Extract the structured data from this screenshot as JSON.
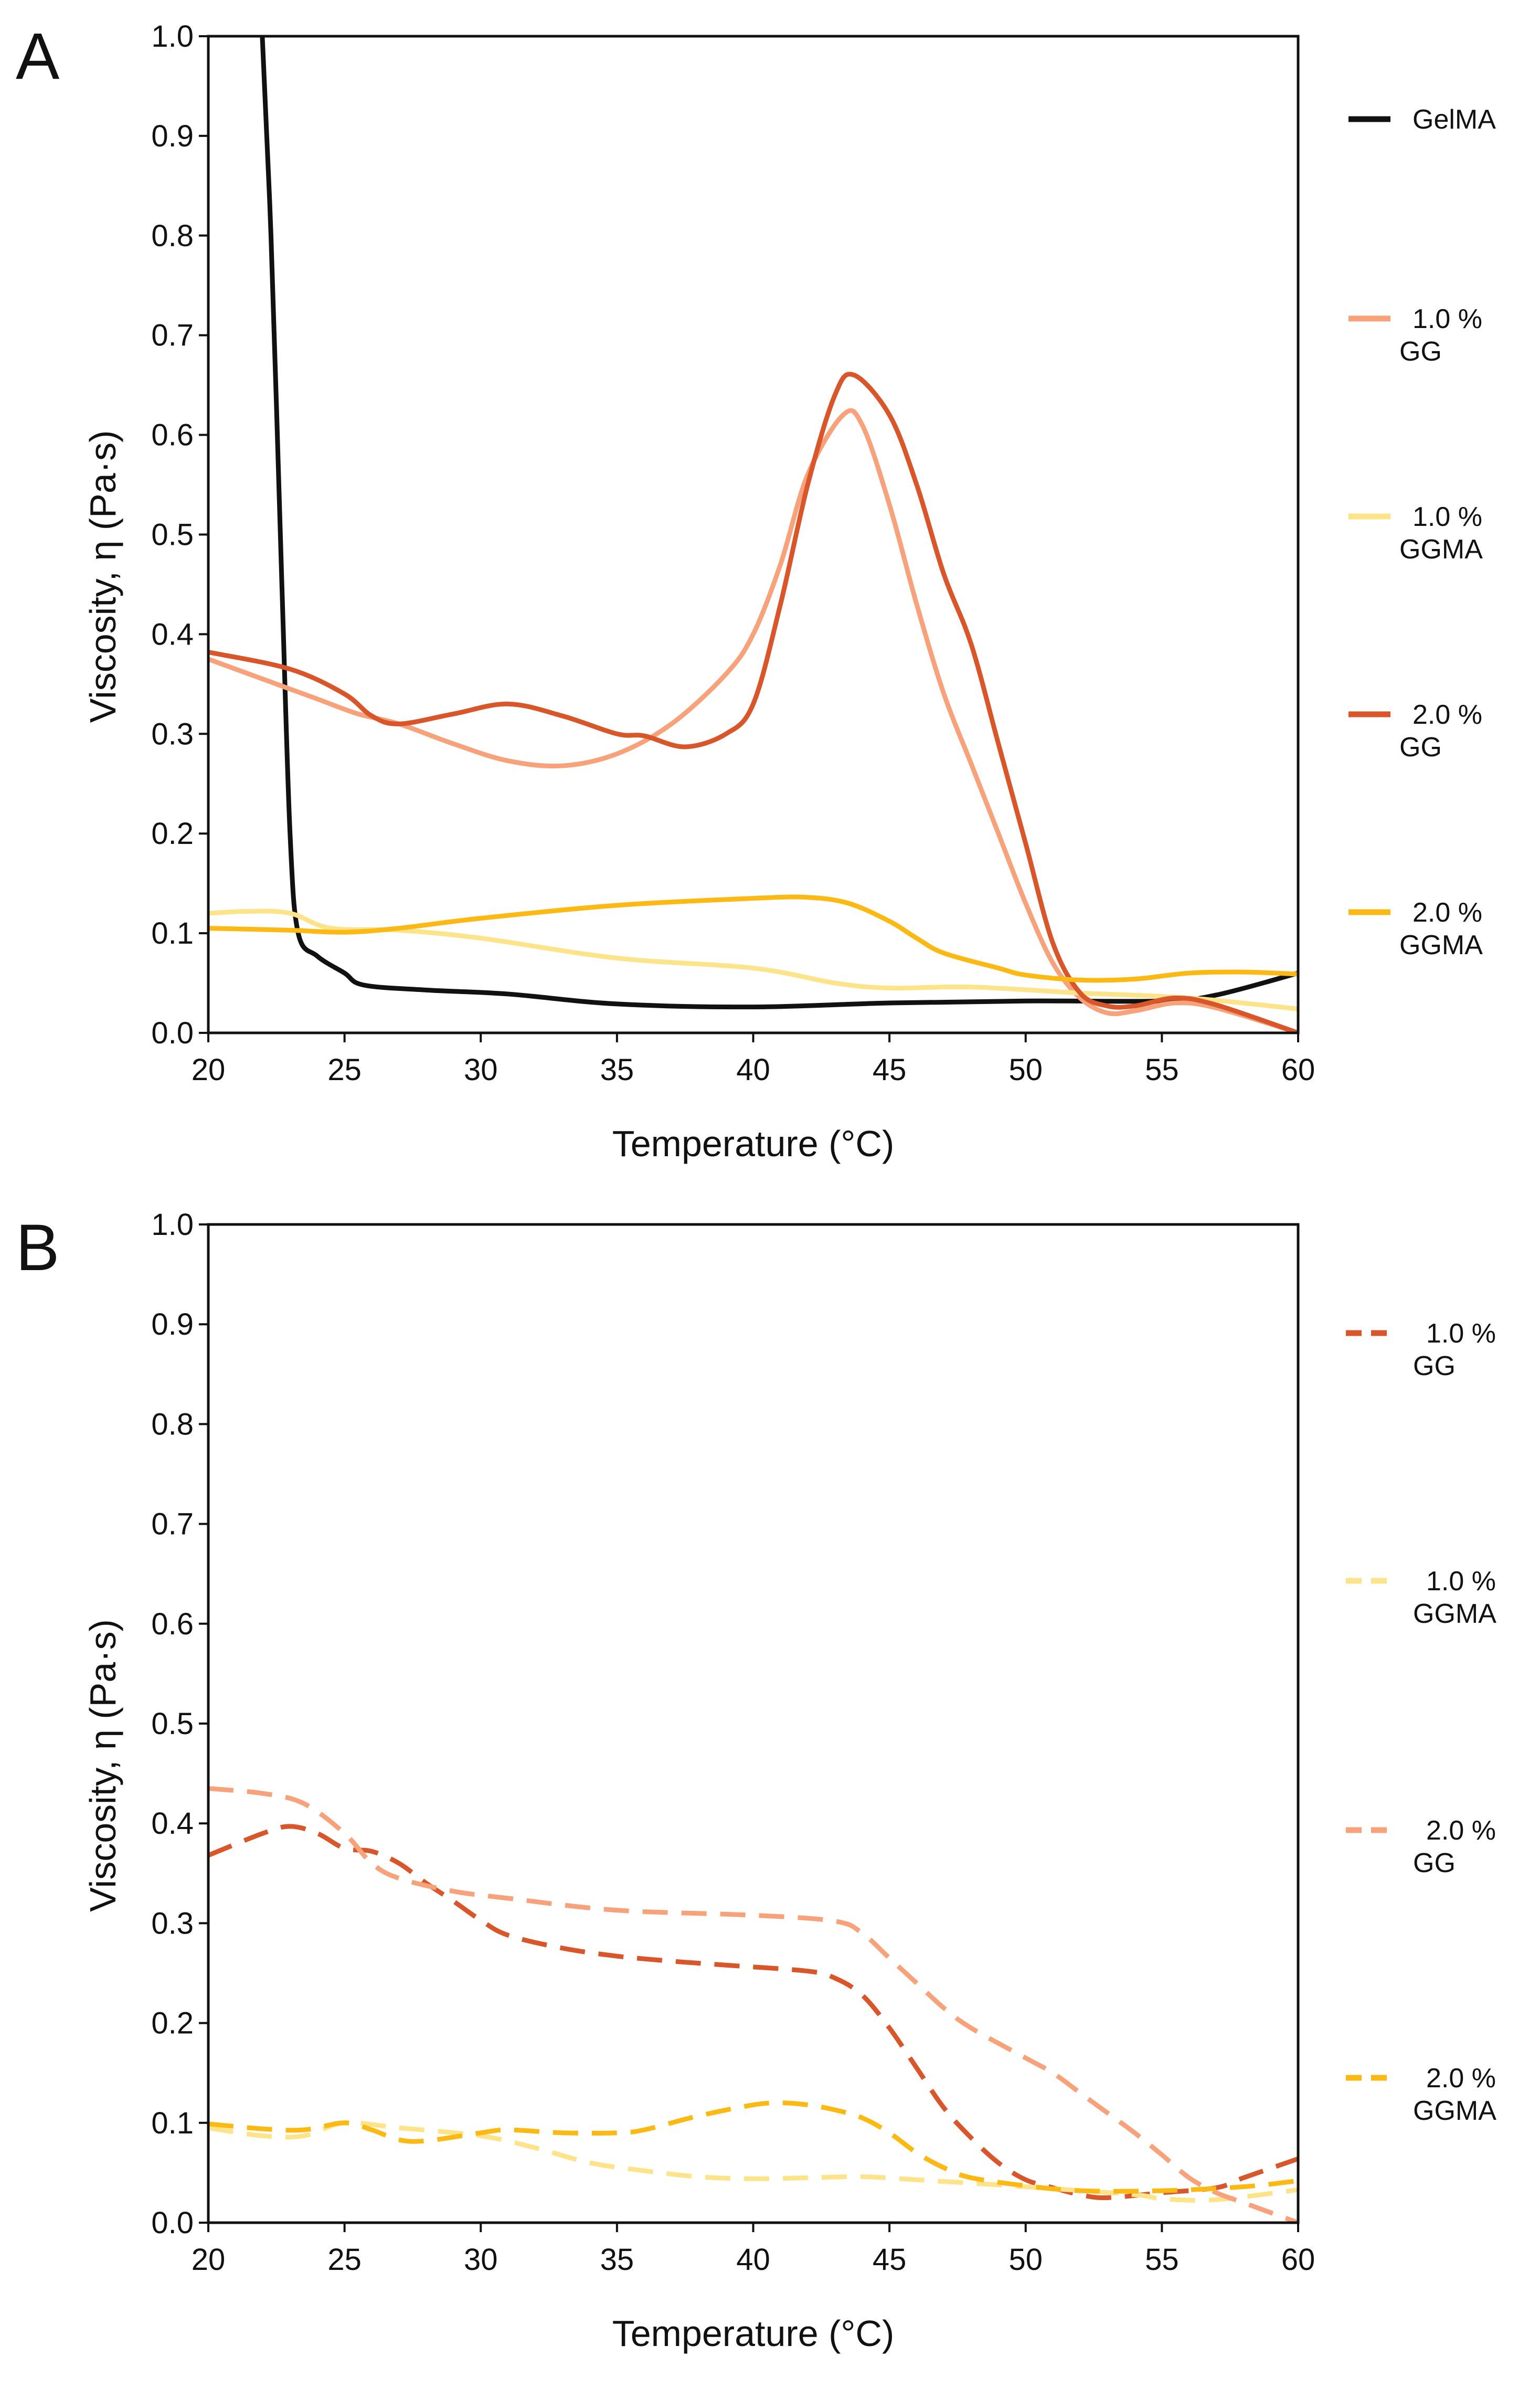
{
  "chart_data": [
    {
      "panel": "A",
      "type": "line",
      "xlabel": "Temperature  (°C)",
      "ylabel": "Viscosity, η (Pa·s)",
      "xlim": [
        20,
        60
      ],
      "ylim": [
        0,
        1.0
      ],
      "xticks": [
        20,
        25,
        30,
        35,
        40,
        45,
        50,
        55,
        60
      ],
      "yticks": [
        0.0,
        0.1,
        0.2,
        0.3,
        0.4,
        0.5,
        0.6,
        0.7,
        0.8,
        0.9,
        1.0
      ],
      "grid": false,
      "legend_position": "right",
      "series": [
        {
          "name": "GelMA",
          "label_lines": [
            "GelMA"
          ],
          "color": "#111111",
          "dash": false,
          "points": [
            [
              21.9,
              1.05
            ],
            [
              22.3,
              0.8
            ],
            [
              22.7,
              0.45
            ],
            [
              23.0,
              0.2
            ],
            [
              23.3,
              0.1
            ],
            [
              24,
              0.077
            ],
            [
              25,
              0.06
            ],
            [
              25.7,
              0.048
            ],
            [
              28,
              0.043
            ],
            [
              31,
              0.039
            ],
            [
              35,
              0.029
            ],
            [
              40,
              0.026
            ],
            [
              45,
              0.03
            ],
            [
              50,
              0.032
            ],
            [
              55,
              0.032
            ],
            [
              57,
              0.038
            ],
            [
              60,
              0.06
            ]
          ]
        },
        {
          "name": "1.0 % GG",
          "label_lines": [
            "1.0 %",
            "GG"
          ],
          "color": "#f7a27a",
          "dash": false,
          "points": [
            [
              20,
              0.375
            ],
            [
              22,
              0.355
            ],
            [
              24,
              0.335
            ],
            [
              25.5,
              0.32
            ],
            [
              27,
              0.31
            ],
            [
              29,
              0.29
            ],
            [
              31,
              0.273
            ],
            [
              33,
              0.268
            ],
            [
              35,
              0.28
            ],
            [
              37,
              0.31
            ],
            [
              39,
              0.36
            ],
            [
              40,
              0.4
            ],
            [
              41,
              0.47
            ],
            [
              42,
              0.56
            ],
            [
              43.3,
              0.62
            ],
            [
              44,
              0.61
            ],
            [
              45,
              0.53
            ],
            [
              46,
              0.43
            ],
            [
              47,
              0.34
            ],
            [
              48,
              0.27
            ],
            [
              49,
              0.2
            ],
            [
              50,
              0.13
            ],
            [
              51,
              0.07
            ],
            [
              52,
              0.035
            ],
            [
              53,
              0.02
            ],
            [
              54,
              0.022
            ],
            [
              55.5,
              0.03
            ],
            [
              57,
              0.025
            ],
            [
              60,
              0.0
            ]
          ]
        },
        {
          "name": "1.0 % GGMA",
          "label_lines": [
            "1.0 %",
            "GGMA"
          ],
          "color": "#fde38a",
          "dash": false,
          "points": [
            [
              20,
              0.12
            ],
            [
              21.5,
              0.122
            ],
            [
              23,
              0.12
            ],
            [
              24.5,
              0.105
            ],
            [
              27,
              0.103
            ],
            [
              30,
              0.095
            ],
            [
              35,
              0.075
            ],
            [
              40,
              0.065
            ],
            [
              43,
              0.05
            ],
            [
              45,
              0.045
            ],
            [
              48,
              0.046
            ],
            [
              52,
              0.04
            ],
            [
              56,
              0.035
            ],
            [
              60,
              0.024
            ]
          ]
        },
        {
          "name": "2.0 % GG",
          "label_lines": [
            "2.0 %",
            "GG"
          ],
          "color": "#d9562a",
          "dash": false,
          "points": [
            [
              20,
              0.382
            ],
            [
              23,
              0.365
            ],
            [
              25,
              0.34
            ],
            [
              26,
              0.318
            ],
            [
              27,
              0.31
            ],
            [
              29,
              0.32
            ],
            [
              31,
              0.33
            ],
            [
              33,
              0.318
            ],
            [
              35,
              0.3
            ],
            [
              36,
              0.298
            ],
            [
              37.5,
              0.287
            ],
            [
              39,
              0.3
            ],
            [
              40,
              0.33
            ],
            [
              41,
              0.43
            ],
            [
              42,
              0.55
            ],
            [
              43,
              0.64
            ],
            [
              43.7,
              0.66
            ],
            [
              45,
              0.62
            ],
            [
              46,
              0.55
            ],
            [
              47,
              0.46
            ],
            [
              48,
              0.39
            ],
            [
              49,
              0.29
            ],
            [
              50,
              0.19
            ],
            [
              51,
              0.09
            ],
            [
              52,
              0.04
            ],
            [
              53,
              0.027
            ],
            [
              54,
              0.027
            ],
            [
              55.5,
              0.035
            ],
            [
              57,
              0.028
            ],
            [
              60,
              0.0
            ]
          ]
        },
        {
          "name": "2.0 % GGMA",
          "label_lines": [
            "2.0 %",
            "GGMA"
          ],
          "color": "#fdb913",
          "dash": false,
          "points": [
            [
              20,
              0.105
            ],
            [
              23,
              0.103
            ],
            [
              25,
              0.101
            ],
            [
              27,
              0.105
            ],
            [
              30,
              0.115
            ],
            [
              35,
              0.128
            ],
            [
              40,
              0.135
            ],
            [
              42,
              0.136
            ],
            [
              43.5,
              0.13
            ],
            [
              45,
              0.112
            ],
            [
              46,
              0.095
            ],
            [
              47,
              0.08
            ],
            [
              49,
              0.065
            ],
            [
              50,
              0.058
            ],
            [
              52,
              0.053
            ],
            [
              54,
              0.054
            ],
            [
              56,
              0.06
            ],
            [
              58,
              0.061
            ],
            [
              60,
              0.059
            ]
          ]
        }
      ]
    },
    {
      "panel": "B",
      "type": "line",
      "xlabel": "Temperature  (°C)",
      "ylabel": "Viscosity, η (Pa·s)",
      "xlim": [
        20,
        60
      ],
      "ylim": [
        0,
        1.0
      ],
      "xticks": [
        20,
        25,
        30,
        35,
        40,
        45,
        50,
        55,
        60
      ],
      "yticks": [
        0.0,
        0.1,
        0.2,
        0.3,
        0.4,
        0.5,
        0.6,
        0.7,
        0.8,
        0.9,
        1.0
      ],
      "grid": false,
      "legend_position": "right",
      "series": [
        {
          "name": "1.0 % GG",
          "label_lines": [
            "1.0 %",
            "GG"
          ],
          "color": "#d9562a",
          "dash": true,
          "points": [
            [
              20,
              0.368
            ],
            [
              22,
              0.39
            ],
            [
              23,
              0.397
            ],
            [
              24,
              0.39
            ],
            [
              25,
              0.375
            ],
            [
              26,
              0.372
            ],
            [
              27,
              0.36
            ],
            [
              28,
              0.34
            ],
            [
              29,
              0.322
            ],
            [
              30,
              0.303
            ],
            [
              31,
              0.288
            ],
            [
              33,
              0.275
            ],
            [
              35,
              0.267
            ],
            [
              37,
              0.262
            ],
            [
              39,
              0.258
            ],
            [
              42,
              0.252
            ],
            [
              43,
              0.245
            ],
            [
              44,
              0.228
            ],
            [
              45,
              0.195
            ],
            [
              46,
              0.155
            ],
            [
              47,
              0.115
            ],
            [
              48,
              0.085
            ],
            [
              49,
              0.06
            ],
            [
              50,
              0.043
            ],
            [
              51,
              0.035
            ],
            [
              52,
              0.028
            ],
            [
              53,
              0.025
            ],
            [
              55,
              0.03
            ],
            [
              57,
              0.035
            ],
            [
              58,
              0.045
            ],
            [
              60,
              0.064
            ]
          ]
        },
        {
          "name": "1.0 % GGMA",
          "label_lines": [
            "1.0 %",
            "GGMA"
          ],
          "color": "#fde38a",
          "dash": true,
          "points": [
            [
              20,
              0.095
            ],
            [
              22,
              0.087
            ],
            [
              23.5,
              0.087
            ],
            [
              25,
              0.1
            ],
            [
              27,
              0.095
            ],
            [
              30,
              0.087
            ],
            [
              32,
              0.075
            ],
            [
              34,
              0.06
            ],
            [
              36,
              0.052
            ],
            [
              38,
              0.046
            ],
            [
              40,
              0.044
            ],
            [
              42,
              0.045
            ],
            [
              44,
              0.046
            ],
            [
              46,
              0.043
            ],
            [
              50,
              0.036
            ],
            [
              54,
              0.028
            ],
            [
              55,
              0.024
            ],
            [
              57,
              0.023
            ],
            [
              60,
              0.033
            ]
          ]
        },
        {
          "name": "2.0 % GG",
          "label_lines": [
            "2.0 %",
            "GG"
          ],
          "color": "#f7a27a",
          "dash": true,
          "points": [
            [
              20,
              0.435
            ],
            [
              22,
              0.43
            ],
            [
              23.5,
              0.42
            ],
            [
              25,
              0.39
            ],
            [
              26,
              0.36
            ],
            [
              27,
              0.345
            ],
            [
              29,
              0.332
            ],
            [
              31,
              0.325
            ],
            [
              35,
              0.313
            ],
            [
              40,
              0.308
            ],
            [
              43,
              0.302
            ],
            [
              44,
              0.29
            ],
            [
              45,
              0.265
            ],
            [
              46,
              0.24
            ],
            [
              47,
              0.215
            ],
            [
              48,
              0.195
            ],
            [
              50,
              0.165
            ],
            [
              51,
              0.15
            ],
            [
              52,
              0.13
            ],
            [
              53,
              0.11
            ],
            [
              54,
              0.09
            ],
            [
              55,
              0.068
            ],
            [
              56,
              0.045
            ],
            [
              57,
              0.03
            ],
            [
              58,
              0.02
            ],
            [
              60,
              0.0
            ]
          ]
        },
        {
          "name": "2.0 % GGMA",
          "label_lines": [
            "2.0 %",
            "GGMA"
          ],
          "color": "#fdb913",
          "dash": true,
          "points": [
            [
              20,
              0.099
            ],
            [
              22,
              0.094
            ],
            [
              23.5,
              0.093
            ],
            [
              25,
              0.1
            ],
            [
              26,
              0.093
            ],
            [
              27,
              0.083
            ],
            [
              28,
              0.082
            ],
            [
              30,
              0.09
            ],
            [
              31,
              0.093
            ],
            [
              33,
              0.09
            ],
            [
              35,
              0.09
            ],
            [
              36,
              0.093
            ],
            [
              38,
              0.107
            ],
            [
              40,
              0.118
            ],
            [
              41,
              0.12
            ],
            [
              42,
              0.118
            ],
            [
              43,
              0.113
            ],
            [
              44,
              0.105
            ],
            [
              45,
              0.09
            ],
            [
              46,
              0.07
            ],
            [
              47,
              0.055
            ],
            [
              48,
              0.045
            ],
            [
              50,
              0.037
            ],
            [
              52,
              0.032
            ],
            [
              55,
              0.032
            ],
            [
              58,
              0.036
            ],
            [
              60,
              0.042
            ]
          ]
        }
      ]
    }
  ]
}
